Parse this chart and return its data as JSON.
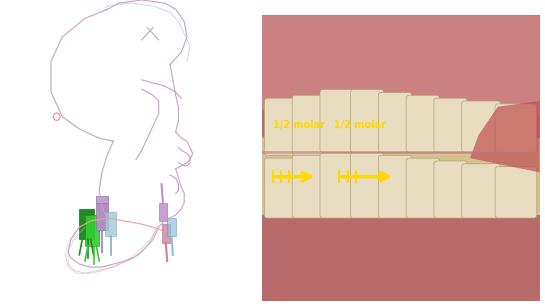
{
  "bg_color": "#ffffff",
  "fig_width": 5.45,
  "fig_height": 3.07,
  "dpi": 100,
  "arrow1_label": "1/2 molar",
  "arrow2_label": "1/2 molar",
  "arrow_color": "#FFD700",
  "sketch_color_purple": "#c8a0c8",
  "sketch_color_blue": "#a0b8d8",
  "sketch_color_pink": "#e8a0a8",
  "tooth_green_dark": "#228B22",
  "tooth_green_light": "#32CD32",
  "tooth_purple": "#b090c0",
  "tooth_mauve": "#d080a0",
  "tooth_lightblue": "#90c0d0"
}
